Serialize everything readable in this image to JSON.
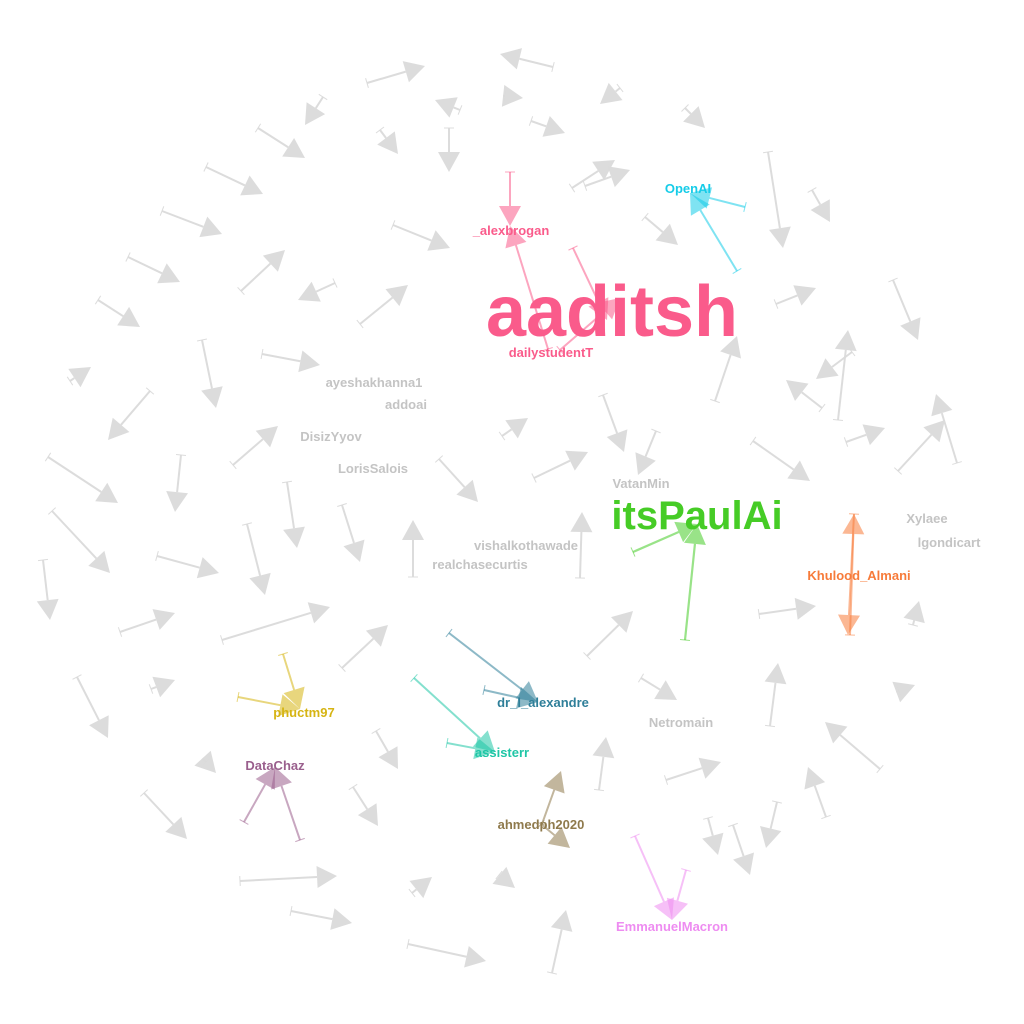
{
  "colors": {
    "background": "#ffffff",
    "edge_default": "#dadada",
    "label_default": "#c4c4c4"
  },
  "nodes": [
    {
      "id": "aaditsh",
      "label": "aaditsh",
      "color": "#fa5b8b",
      "size": "largest"
    },
    {
      "id": "itsPaulAi",
      "label": "itsPaulAi",
      "color": "#46cc26",
      "size": "large"
    },
    {
      "id": "_alexbrogan",
      "label": "_alexbrogan",
      "color": "#fa5b8b",
      "size": "small"
    },
    {
      "id": "dailystudentT",
      "label": "dailystudentT",
      "color": "#fa5b8b",
      "size": "small"
    },
    {
      "id": "OpenAI",
      "label": "OpenAI",
      "color": "#16cce8",
      "size": "small"
    },
    {
      "id": "Khulood_Almani",
      "label": "Khulood_Almani",
      "color": "#f77b3a",
      "size": "small"
    },
    {
      "id": "dr_l_alexandre",
      "label": "dr_l_alexandre",
      "color": "#2f7f99",
      "size": "small"
    },
    {
      "id": "assisterr",
      "label": "assisterr",
      "color": "#1fc6a6",
      "size": "small"
    },
    {
      "id": "phuctm97",
      "label": "phuctm97",
      "color": "#d6b413",
      "size": "small"
    },
    {
      "id": "DataChaz",
      "label": "DataChaz",
      "color": "#9a5f8d",
      "size": "small"
    },
    {
      "id": "ahmedph2020",
      "label": "ahmedph2020",
      "color": "#8f7a4c",
      "size": "small"
    },
    {
      "id": "EmmanuelMacron",
      "label": "EmmanuelMacron",
      "color": "#ee8cf1",
      "size": "small"
    },
    {
      "id": "ayeshakhanna1",
      "label": "ayeshakhanna1",
      "color": "#c4c4c4",
      "size": "small"
    },
    {
      "id": "addoai",
      "label": "addoai",
      "color": "#c4c4c4",
      "size": "small"
    },
    {
      "id": "DisizYyov",
      "label": "DisizYyov",
      "color": "#c4c4c4",
      "size": "small"
    },
    {
      "id": "LorisSalois",
      "label": "LorisSalois",
      "color": "#c4c4c4",
      "size": "small"
    },
    {
      "id": "VatanMin",
      "label": "VatanMin",
      "color": "#c4c4c4",
      "size": "small"
    },
    {
      "id": "vishalkothawade",
      "label": "vishalkothawade",
      "color": "#c4c4c4",
      "size": "small"
    },
    {
      "id": "realchasecurtis",
      "label": "realchasecurtis",
      "color": "#c4c4c4",
      "size": "small"
    },
    {
      "id": "Xylaee",
      "label": "Xylaee",
      "color": "#c4c4c4",
      "size": "small"
    },
    {
      "id": "lgondicart",
      "label": "lgondicart",
      "color": "#c4c4c4",
      "size": "small"
    },
    {
      "id": "Netromain",
      "label": "Netromain",
      "color": "#c4c4c4",
      "size": "small"
    }
  ]
}
